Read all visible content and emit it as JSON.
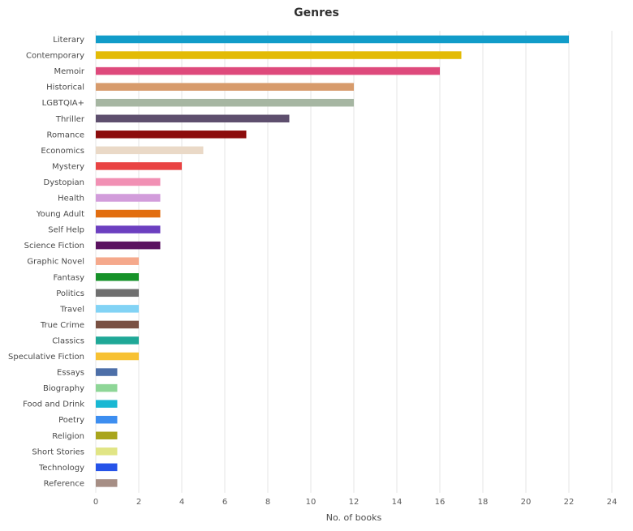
{
  "chart_data": {
    "type": "bar",
    "orientation": "horizontal",
    "title": "Genres",
    "xlabel": "No. of books",
    "ylabel": "",
    "xlim": [
      0,
      24
    ],
    "xticks": [
      0,
      2,
      4,
      6,
      8,
      10,
      12,
      14,
      16,
      18,
      20,
      22,
      24
    ],
    "grid": true,
    "categories": [
      "Literary",
      "Contemporary",
      "Memoir",
      "Historical",
      "LGBTQIA+",
      "Thriller",
      "Romance",
      "Economics",
      "Mystery",
      "Dystopian",
      "Health",
      "Young Adult",
      "Self Help",
      "Science Fiction",
      "Graphic Novel",
      "Fantasy",
      "Politics",
      "Travel",
      "True Crime",
      "Classics",
      "Speculative Fiction",
      "Essays",
      "Biography",
      "Food and Drink",
      "Poetry",
      "Religion",
      "Short Stories",
      "Technology",
      "Reference"
    ],
    "values": [
      22,
      17,
      16,
      12,
      12,
      9,
      7,
      5,
      4,
      3,
      3,
      3,
      3,
      3,
      2,
      2,
      2,
      2,
      2,
      2,
      2,
      1,
      1,
      1,
      1,
      1,
      1,
      1,
      1
    ],
    "colors": [
      "#119cc9",
      "#e3bb06",
      "#de4a7c",
      "#d79b6c",
      "#a6b6a2",
      "#5e4f6e",
      "#8c0d0d",
      "#ead9c7",
      "#e94343",
      "#f190b4",
      "#d29cdb",
      "#e26e10",
      "#6c3fc0",
      "#5b1260",
      "#f5a98c",
      "#169229",
      "#6f6f6f",
      "#82d3f5",
      "#7a5143",
      "#1fa897",
      "#f7c132",
      "#4d6fa8",
      "#8ed697",
      "#19b8d3",
      "#3d8ef0",
      "#a9a51c",
      "#e1e585",
      "#2653e8",
      "#a68e85"
    ]
  }
}
